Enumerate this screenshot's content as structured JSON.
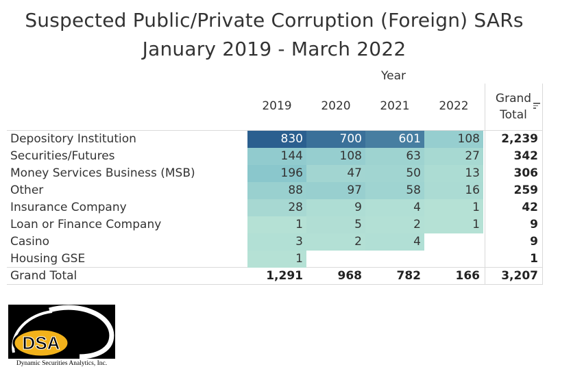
{
  "title_line1": "Suspected Public/Private Corruption (Foreign) SARs",
  "title_line2": "January 2019 - March 2022",
  "column_group_label": "Year",
  "grand_total_label_line1": "Grand",
  "grand_total_label_line2": "Total",
  "sort_icon": "sort-descending-icon",
  "logo": {
    "text": "DSA",
    "caption": "Dynamic Securities Analytics, Inc."
  },
  "chart_data": {
    "type": "heatmap",
    "title": "Suspected Public/Private Corruption (Foreign) SARs",
    "subtitle": "January 2019 - March 2022",
    "column_header": "Year",
    "columns": [
      "2019",
      "2020",
      "2021",
      "2022"
    ],
    "rows": [
      {
        "label": "Depository Institution",
        "values": [
          830,
          700,
          601,
          108
        ],
        "display": [
          "830",
          "700",
          "601",
          "108"
        ],
        "total": "2,239"
      },
      {
        "label": "Securities/Futures",
        "values": [
          144,
          108,
          63,
          27
        ],
        "display": [
          "144",
          "108",
          "63",
          "27"
        ],
        "total": "342"
      },
      {
        "label": "Money Services Business (MSB)",
        "values": [
          196,
          47,
          50,
          13
        ],
        "display": [
          "196",
          "47",
          "50",
          "13"
        ],
        "total": "306"
      },
      {
        "label": "Other",
        "values": [
          88,
          97,
          58,
          16
        ],
        "display": [
          "88",
          "97",
          "58",
          "16"
        ],
        "total": "259"
      },
      {
        "label": "Insurance Company",
        "values": [
          28,
          9,
          4,
          1
        ],
        "display": [
          "28",
          "9",
          "4",
          "1"
        ],
        "total": "42"
      },
      {
        "label": "Loan or Finance Company",
        "values": [
          1,
          5,
          2,
          1
        ],
        "display": [
          "1",
          "5",
          "2",
          "1"
        ],
        "total": "9"
      },
      {
        "label": "Casino",
        "values": [
          3,
          2,
          4,
          null
        ],
        "display": [
          "3",
          "2",
          "4",
          ""
        ],
        "total": "9"
      },
      {
        "label": "Housing GSE",
        "values": [
          1,
          null,
          null,
          null
        ],
        "display": [
          "1",
          "",
          "",
          ""
        ],
        "total": "1"
      }
    ],
    "grand_total_row": {
      "label": "Grand Total",
      "values": [
        "1,291",
        "968",
        "782",
        "166"
      ],
      "total": "3,207"
    },
    "color_scale": {
      "low": "#b8e3d6",
      "mid": "#89c6cc",
      "high": "#2b5f8f"
    }
  }
}
